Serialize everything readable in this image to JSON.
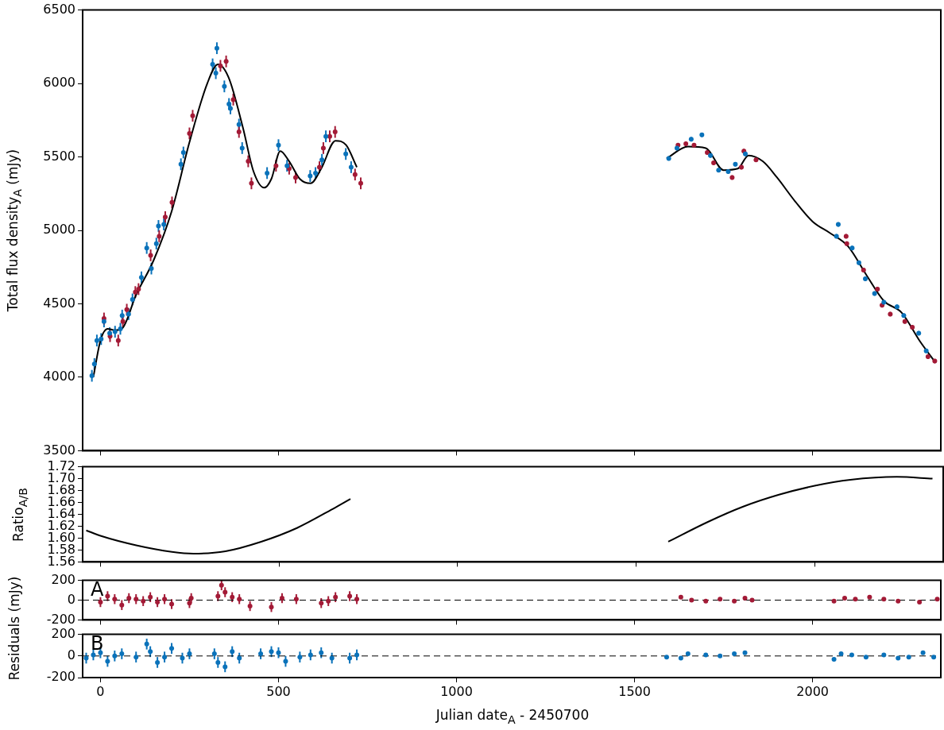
{
  "chart_data": [
    {
      "type": "scatter",
      "ylabel": "Total flux density$_{A}$ (mJy)",
      "xlim": [
        -50,
        2360
      ],
      "xticks": [
        0,
        500,
        1000,
        1500,
        2000
      ],
      "ylim": [
        3500,
        6500
      ],
      "yticks": [
        3500,
        4000,
        4500,
        5000,
        5500,
        6000,
        6500
      ],
      "tick_labels": "y",
      "grid": false,
      "legend": false,
      "series": [
        {
          "marker": "circle",
          "color": "#0a72ba",
          "x": [
            -24,
            -17,
            -10,
            2,
            10,
            26,
            41,
            56,
            61,
            79,
            90,
            115,
            130,
            143,
            157,
            163,
            178,
            226,
            233,
            315,
            327,
            324,
            348,
            361,
            365,
            389,
            398,
            468,
            500,
            524,
            589,
            604,
            622,
            633,
            689,
            704,
            1596,
            1619,
            1659,
            1689,
            1713,
            1736,
            1763,
            1783,
            1811,
            2067,
            2072,
            2111,
            2130,
            2148,
            2174,
            2200,
            2237,
            2256,
            2298,
            2319
          ],
          "values": [
            4010,
            4090,
            4250,
            4260,
            4380,
            4300,
            4310,
            4330,
            4420,
            4430,
            4530,
            4680,
            4880,
            4740,
            4910,
            5030,
            5040,
            5450,
            5530,
            6130,
            6240,
            6070,
            5980,
            5860,
            5830,
            5720,
            5560,
            5390,
            5580,
            5440,
            5370,
            5390,
            5480,
            5640,
            5520,
            5430,
            5490,
            5560,
            5620,
            5650,
            5510,
            5410,
            5400,
            5450,
            5520,
            4960,
            5040,
            4880,
            4780,
            4670,
            4570,
            4510,
            4480,
            4420,
            4300,
            4180
          ],
          "errors": [
            40,
            40,
            40,
            40,
            40,
            40,
            40,
            40,
            40,
            40,
            40,
            40,
            40,
            40,
            40,
            40,
            40,
            40,
            40,
            40,
            40,
            40,
            40,
            40,
            40,
            40,
            40,
            40,
            40,
            40,
            40,
            40,
            40,
            40,
            40,
            40,
            15,
            15,
            15,
            15,
            15,
            15,
            15,
            15,
            15,
            15,
            15,
            15,
            15,
            15,
            15,
            15,
            15,
            15,
            15,
            15
          ]
        },
        {
          "marker": "circle",
          "color": "#a31a36",
          "x": [
            10,
            27,
            50,
            63,
            74,
            98,
            107,
            141,
            165,
            182,
            201,
            250,
            259,
            337,
            353,
            373,
            389,
            415,
            424,
            493,
            530,
            548,
            615,
            626,
            644,
            659,
            715,
            731,
            1622,
            1644,
            1667,
            1704,
            1722,
            1774,
            1800,
            1807,
            1841,
            2094,
            2096,
            2143,
            2182,
            2195,
            2218,
            2259,
            2280,
            2324,
            2343
          ],
          "values": [
            4400,
            4280,
            4250,
            4380,
            4460,
            4580,
            4600,
            4830,
            4960,
            5090,
            5190,
            5660,
            5780,
            6120,
            6150,
            5890,
            5670,
            5470,
            5320,
            5440,
            5420,
            5360,
            5430,
            5560,
            5640,
            5670,
            5380,
            5320,
            5580,
            5590,
            5580,
            5530,
            5460,
            5360,
            5430,
            5540,
            5480,
            4960,
            4910,
            4730,
            4600,
            4490,
            4430,
            4380,
            4340,
            4140,
            4110
          ],
          "errors": [
            40,
            40,
            40,
            40,
            40,
            40,
            40,
            40,
            40,
            40,
            40,
            40,
            40,
            40,
            40,
            40,
            40,
            40,
            40,
            40,
            40,
            40,
            40,
            40,
            40,
            40,
            40,
            40,
            15,
            15,
            15,
            15,
            15,
            15,
            15,
            15,
            15,
            15,
            15,
            15,
            15,
            15,
            15,
            15,
            15,
            15,
            15
          ]
        },
        {
          "type": "line",
          "marker": "none",
          "color": "#000000",
          "x": [
            -20,
            0,
            20,
            40,
            60,
            100,
            150,
            200,
            250,
            300,
            330,
            360,
            400,
            430,
            460,
            480,
            505,
            530,
            560,
            590,
            620,
            660,
            690,
            720,
            1000,
            1590,
            1650,
            1700,
            1750,
            1790,
            1820,
            1860,
            1900,
            1950,
            2000,
            2050,
            2100,
            2150,
            2200,
            2250,
            2300,
            2345
          ],
          "values": [
            4000,
            4250,
            4330,
            4320,
            4330,
            4560,
            4800,
            5130,
            5600,
            6000,
            6130,
            6040,
            5700,
            5400,
            5290,
            5350,
            5540,
            5470,
            5350,
            5320,
            5420,
            5610,
            5580,
            5430,
            null,
            5490,
            5570,
            5560,
            5410,
            5420,
            5510,
            5470,
            5360,
            5200,
            5060,
            4980,
            4890,
            4700,
            4520,
            4440,
            4250,
            4100
          ]
        }
      ]
    },
    {
      "type": "line",
      "ylabel": "Ratio$_{A/B}$",
      "xlim": [
        -50,
        2360
      ],
      "xticks": [
        0,
        500,
        1000,
        1500,
        2000
      ],
      "ylim": [
        1.56,
        1.72
      ],
      "yticks": [
        1.56,
        1.58,
        {
          "value": 1.6,
          "label": "1.60"
        },
        1.62,
        1.64,
        1.66,
        1.68,
        {
          "value": 1.7,
          "label": "1.70"
        },
        1.72
      ],
      "tick_labels": "y",
      "grid": false,
      "legend": false,
      "series": [
        {
          "color": "#000000",
          "x": [
            -40,
            0,
            100,
            200,
            260,
            350,
            450,
            550,
            650,
            700,
            1000,
            1590,
            1700,
            1800,
            1900,
            2000,
            2100,
            2230,
            2330
          ],
          "values": [
            1.613,
            1.604,
            1.588,
            1.577,
            1.574,
            1.578,
            1.594,
            1.617,
            1.649,
            1.666,
            null,
            1.594,
            1.627,
            1.653,
            1.673,
            1.688,
            1.698,
            1.703,
            1.7
          ]
        }
      ]
    },
    {
      "type": "scatter",
      "ylabel": "Residuals (mJy)",
      "annotations": [
        "A"
      ],
      "xlim": [
        -50,
        2360
      ],
      "xticks": [
        0,
        500,
        1000,
        1500,
        2000
      ],
      "ylim": [
        -200,
        200
      ],
      "yticks": [
        -200,
        0,
        200
      ],
      "tick_labels": "y",
      "grid": false,
      "legend": false,
      "ref_lines": [
        {
          "axis": "y",
          "value": 0,
          "color": "#000000",
          "line_style": "dashed"
        }
      ],
      "series": [
        {
          "marker": "circle",
          "color": "#a31a36",
          "x": [
            0,
            20,
            40,
            60,
            80,
            100,
            120,
            140,
            160,
            180,
            200,
            250,
            255,
            330,
            340,
            350,
            370,
            390,
            420,
            480,
            510,
            550,
            620,
            640,
            660,
            700,
            720,
            1630,
            1660,
            1700,
            1740,
            1780,
            1810,
            1830,
            2060,
            2090,
            2120,
            2160,
            2200,
            2240,
            2300,
            2350
          ],
          "values": [
            -20,
            40,
            10,
            -50,
            20,
            10,
            -10,
            30,
            -20,
            10,
            -40,
            -30,
            20,
            40,
            150,
            80,
            30,
            10,
            -60,
            -70,
            20,
            10,
            -30,
            -10,
            30,
            40,
            10,
            30,
            0,
            -10,
            10,
            -10,
            20,
            0,
            -10,
            20,
            10,
            30,
            10,
            -10,
            -20,
            10
          ],
          "errors": [
            50,
            50,
            50,
            50,
            50,
            50,
            50,
            50,
            50,
            50,
            50,
            50,
            50,
            50,
            50,
            50,
            50,
            50,
            50,
            50,
            50,
            50,
            50,
            50,
            50,
            50,
            50,
            15,
            15,
            15,
            15,
            15,
            15,
            15,
            15,
            15,
            15,
            15,
            15,
            15,
            15,
            15
          ]
        }
      ]
    },
    {
      "type": "scatter",
      "xlabel": "Julian date$_{A}$ - 2450700",
      "annotations": [
        "B"
      ],
      "xlim": [
        -50,
        2360
      ],
      "xticks": [
        0,
        500,
        1000,
        1500,
        2000
      ],
      "ylim": [
        -200,
        200
      ],
      "yticks": [
        -200,
        0,
        200
      ],
      "grid": false,
      "legend": false,
      "ref_lines": [
        {
          "axis": "y",
          "value": 0,
          "color": "#000000",
          "line_style": "dashed"
        }
      ],
      "series": [
        {
          "marker": "circle",
          "color": "#0a72ba",
          "x": [
            -40,
            -20,
            0,
            20,
            40,
            60,
            100,
            130,
            140,
            160,
            180,
            200,
            230,
            250,
            320,
            330,
            350,
            370,
            390,
            450,
            480,
            500,
            520,
            560,
            590,
            620,
            650,
            700,
            720,
            1590,
            1630,
            1650,
            1700,
            1740,
            1780,
            1810,
            2060,
            2080,
            2110,
            2150,
            2200,
            2240,
            2270,
            2310,
            2340
          ],
          "values": [
            -20,
            10,
            30,
            -50,
            0,
            20,
            -10,
            110,
            40,
            -60,
            -10,
            70,
            -20,
            20,
            20,
            -60,
            -100,
            40,
            -20,
            20,
            40,
            30,
            -50,
            -10,
            10,
            30,
            -20,
            -20,
            10,
            -10,
            -20,
            20,
            10,
            0,
            20,
            30,
            -30,
            20,
            10,
            -10,
            10,
            -20,
            -10,
            30,
            -10
          ],
          "errors": [
            50,
            50,
            50,
            50,
            50,
            50,
            50,
            50,
            50,
            50,
            50,
            50,
            50,
            50,
            50,
            50,
            50,
            50,
            50,
            50,
            50,
            50,
            50,
            50,
            50,
            50,
            50,
            50,
            50,
            15,
            15,
            15,
            15,
            15,
            15,
            15,
            15,
            15,
            15,
            15,
            15,
            15,
            15,
            15,
            15
          ]
        }
      ]
    }
  ]
}
